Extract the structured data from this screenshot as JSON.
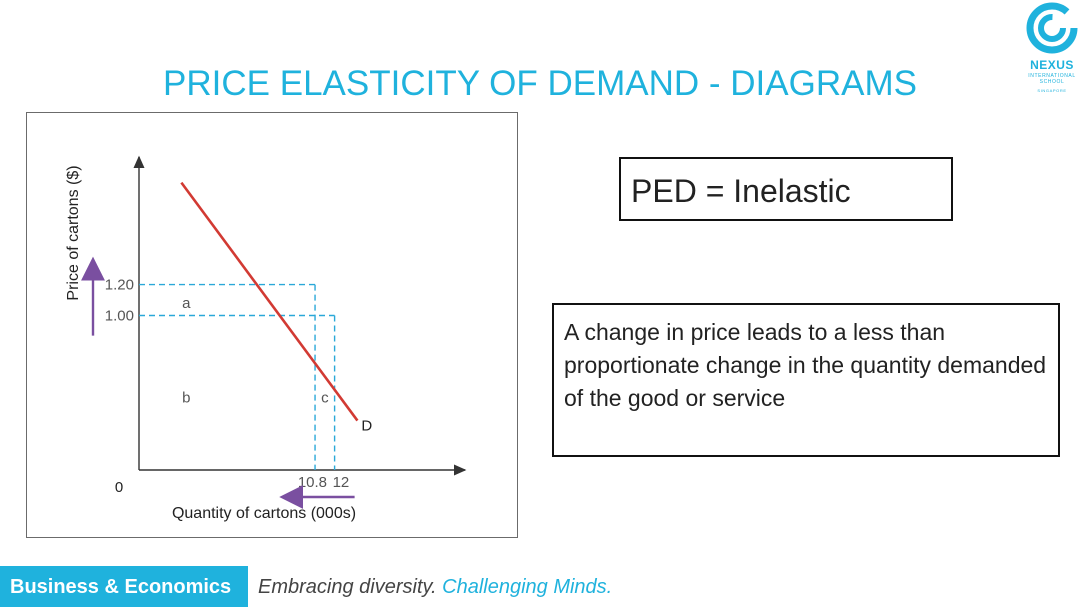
{
  "slide": {
    "title": "PRICE ELASTICITY OF DEMAND - DIAGRAMS",
    "logo": {
      "name": "NEXUS",
      "line1": "INTERNATIONAL",
      "line2": "SCHOOL",
      "line3": "SINGAPORE"
    },
    "ped_label": "PED = Inelastic",
    "definition": "A change in price leads to a less than proportionate change in the quantity demanded of the good or service",
    "footer": {
      "tag": "Business & Economics",
      "motto_part1": "Embracing diversity.",
      "motto_part2": "Challenging Minds."
    }
  },
  "colors": {
    "accent": "#1fb2dd",
    "demand_line": "#d23a33",
    "dashed": "#2aa8d8",
    "arrow": "#7a4fa0",
    "axis": "#333333",
    "text": "#222222"
  },
  "chart_data": {
    "type": "line",
    "title": "",
    "xlabel": "Quantity of cartons (000s)",
    "ylabel": "Price of cartons ($)",
    "origin_label": "0",
    "xlim": [
      0,
      20
    ],
    "ylim": [
      0,
      2.0
    ],
    "x_ticks": [
      {
        "value": 10.8,
        "label": "10.8"
      },
      {
        "value": 12,
        "label": "12"
      }
    ],
    "y_ticks": [
      {
        "value": 1.2,
        "label": "1.20"
      },
      {
        "value": 1.0,
        "label": "1.00"
      }
    ],
    "series": [
      {
        "name": "D",
        "x": [
          2.6,
          13.4
        ],
        "y": [
          1.86,
          0.32
        ]
      }
    ],
    "points": [
      {
        "x": 10.8,
        "y": 1.2
      },
      {
        "x": 12,
        "y": 1.0
      }
    ],
    "area_labels": [
      {
        "label": "a",
        "x": 2.9,
        "y": 1.08
      },
      {
        "label": "b",
        "x": 2.9,
        "y": 0.47
      },
      {
        "label": "c",
        "x": 11.4,
        "y": 0.47
      }
    ],
    "annotations": {
      "price_change": "up",
      "quantity_change": "left"
    }
  }
}
